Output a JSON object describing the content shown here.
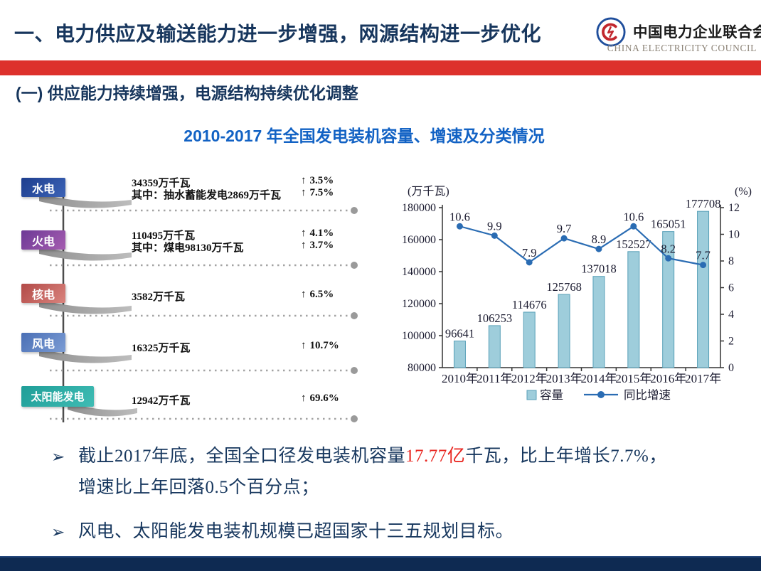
{
  "header": {
    "title": "一、电力供应及输送能力进一步增强，网源结构进一步优化",
    "logo": {
      "org_cn": "中国电力企业联合会",
      "org_en": "CHINA ELECTRICITY COUNCIL"
    }
  },
  "section": {
    "title": "(一)  供应能力持续增强，电源结构持续优化调整"
  },
  "figure_title": "2010-2017 年全国发电装机容量、增速及分类情况",
  "breakdown": {
    "items": [
      {
        "label": "水电",
        "grad": [
          "#1e3e8e",
          "#3c63b6"
        ],
        "lines": [
          {
            "text": "34359万千瓦",
            "pct": "3.5%"
          },
          {
            "text": "其中：抽水蓄能发电2869万千瓦",
            "pct": "7.5%"
          }
        ]
      },
      {
        "label": "火电",
        "grad": [
          "#6d3a96",
          "#a55cb0"
        ],
        "lines": [
          {
            "text": "110495万千瓦",
            "pct": "4.1%"
          },
          {
            "text": "其中：煤电98130万千瓦",
            "pct": "3.7%"
          }
        ]
      },
      {
        "label": "核电",
        "grad": [
          "#b24a47",
          "#d9837d"
        ],
        "lines": [
          {
            "text": "3582万千瓦",
            "pct": "6.5%"
          }
        ]
      },
      {
        "label": "风电",
        "grad": [
          "#4a6fb5",
          "#7b9cd4"
        ],
        "lines": [
          {
            "text": "16325万千瓦",
            "pct": "10.7%"
          }
        ]
      },
      {
        "label": "太阳能发电",
        "grad": [
          "#1f9e98",
          "#3fbcb4"
        ],
        "lines": [
          {
            "text": "12942万千瓦",
            "pct": "69.6%"
          }
        ]
      }
    ],
    "arrow_glyph": "↑"
  },
  "chart_data": {
    "type": "bar+line",
    "title": "2010-2017 年全国发电装机容量、增速及分类情况",
    "categories": [
      "2010年",
      "2011年",
      "2012年",
      "2013年",
      "2014年",
      "2015年",
      "2016年",
      "2017年"
    ],
    "series": [
      {
        "name": "容量",
        "type": "bar",
        "values": [
          96641,
          106253,
          114676,
          125768,
          137018,
          152527,
          165051,
          177708
        ],
        "color": "#9ecddb",
        "border": "#58a0b8"
      },
      {
        "name": "同比增速",
        "type": "line",
        "values": [
          10.6,
          9.9,
          7.9,
          9.7,
          8.9,
          10.6,
          8.2,
          7.7
        ],
        "color": "#2a6cb3"
      }
    ],
    "left_axis": {
      "label": "(万千瓦)",
      "min": 80000,
      "max": 180000,
      "step": 20000
    },
    "right_axis": {
      "label": "(%)",
      "min": 0,
      "max": 12,
      "step": 2
    },
    "legend_position": "bottom",
    "grid": false,
    "data_labels": true
  },
  "bullets": {
    "glyph": "➢",
    "items": [
      {
        "parts": [
          {
            "text": "截止2017年底，全国全口径发电装机容量"
          },
          {
            "text": "17.77亿",
            "red": true
          },
          {
            "text": "千瓦，比上年增长7.7%，\n增速比上年回落0.5个百分点；"
          }
        ]
      },
      {
        "parts": [
          {
            "text": "风电、太阳能发电装机规模已超国家十三五规划目标。"
          }
        ]
      }
    ]
  },
  "colors": {
    "stripe_red": "#dd312c",
    "bottom_navy": "#0e2a52",
    "title_navy": "#17365d",
    "figure_blue": "#1262c4",
    "highlight_red": "#e8251f"
  }
}
